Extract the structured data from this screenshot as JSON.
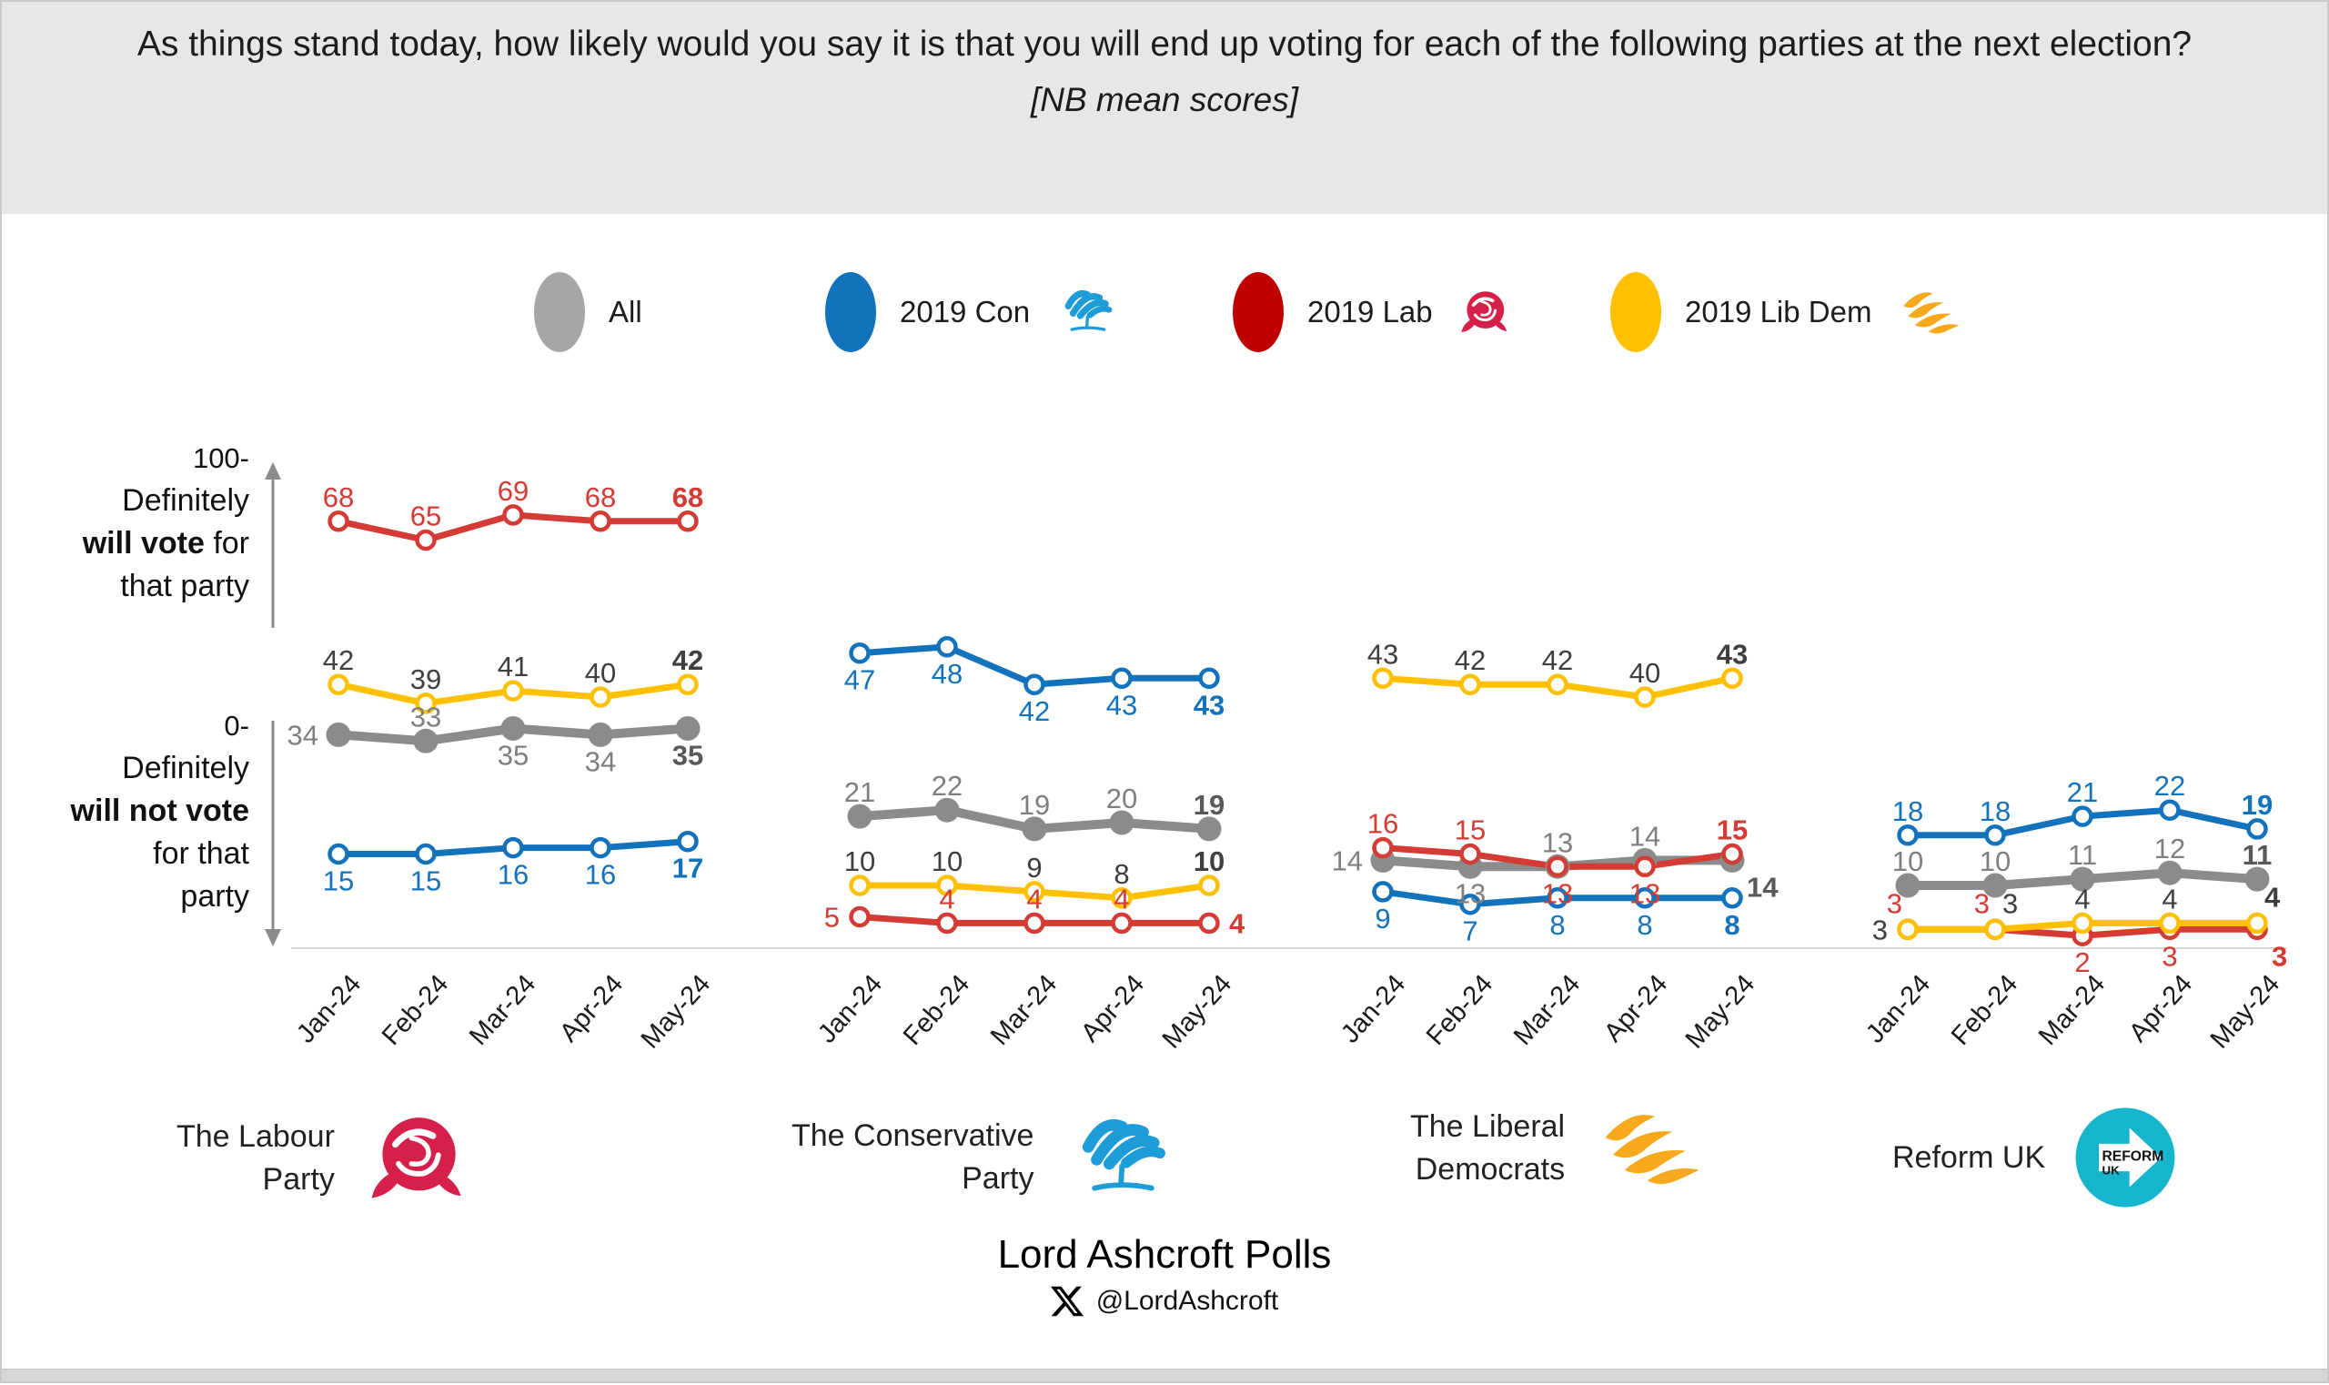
{
  "title": {
    "question": "As things stand today, how likely would you say it is that you will end up voting for each of the following parties at the next election?",
    "note": "[NB mean scores]"
  },
  "legend": {
    "items": [
      {
        "label": "All",
        "color": "#a6a6a6",
        "icon": null
      },
      {
        "label": "2019 Con",
        "color": "#1272bb",
        "icon": "conservative-tree"
      },
      {
        "label": "2019 Lab",
        "color": "#c00000",
        "icon": "labour-rose"
      },
      {
        "label": "2019 Lib Dem",
        "color": "#ffc000",
        "icon": "libdem-bird"
      }
    ]
  },
  "y_axis": {
    "top_tick": "100-",
    "top": {
      "l1": "Definitely",
      "bold": "will vote",
      "after_bold": " for",
      "l3": "that party"
    },
    "bottom_tick": "0-",
    "bottom": {
      "l1": "Definitely",
      "bold": "will not vote",
      "l3": "for that",
      "l4": "party"
    }
  },
  "colors": {
    "all": "#8b8b8b",
    "con": "#1272bb",
    "lab": "#d43b34",
    "libdem": "#ffc000",
    "label_gray": "#7f7f7f",
    "label_gray_last": "#595959",
    "label_dark": "#3f3f3f",
    "baseline": "#d9d9d9",
    "arrow": "#8c8c8c",
    "tick_text": "#1a1a1a"
  },
  "chart_data": {
    "type": "line",
    "x": [
      "Jan-24",
      "Feb-24",
      "Mar-24",
      "Apr-24",
      "May-24"
    ],
    "ylim": [
      0,
      100
    ],
    "grid": false,
    "legend_position": "top",
    "panels": [
      {
        "party": "The Labour Party",
        "name_lines": [
          "The Labour",
          "Party"
        ],
        "logo": "labour-rose",
        "series": [
          {
            "name": "All",
            "values": [
              34,
              33,
              35,
              34,
              35
            ],
            "label_pos": [
              "l",
              "a",
              "b",
              "b",
              "b"
            ]
          },
          {
            "name": "2019 Lab",
            "values": [
              68,
              65,
              69,
              68,
              68
            ],
            "label_pos": [
              "a",
              "a",
              "a",
              "a",
              "a"
            ]
          },
          {
            "name": "2019 Lib Dem",
            "values": [
              42,
              39,
              41,
              40,
              42
            ],
            "label_pos": [
              "a",
              "a",
              "a",
              "a",
              "a"
            ]
          },
          {
            "name": "2019 Con",
            "values": [
              15,
              15,
              16,
              16,
              17
            ],
            "label_pos": [
              "b",
              "b",
              "b",
              "b",
              "b"
            ]
          }
        ]
      },
      {
        "party": "The Conservative Party",
        "name_lines": [
          "The Conservative",
          "Party"
        ],
        "logo": "conservative-tree",
        "series": [
          {
            "name": "All",
            "values": [
              21,
              22,
              19,
              20,
              19
            ],
            "label_pos": [
              "a",
              "a",
              "a",
              "a",
              "a"
            ]
          },
          {
            "name": "2019 Lab",
            "values": [
              5,
              4,
              4,
              4,
              4
            ],
            "label_pos": [
              "l",
              "a",
              "a",
              "a",
              "r"
            ]
          },
          {
            "name": "2019 Lib Dem",
            "values": [
              10,
              10,
              9,
              8,
              10
            ],
            "label_pos": [
              "a",
              "a",
              "a",
              "a",
              "a"
            ]
          },
          {
            "name": "2019 Con",
            "values": [
              47,
              48,
              42,
              43,
              43
            ],
            "label_pos": [
              "b",
              "b",
              "b",
              "b",
              "b"
            ]
          }
        ]
      },
      {
        "party": "The Liberal Democrats",
        "name_lines": [
          "The Liberal",
          "Democrats"
        ],
        "logo": "libdem-bird",
        "series": [
          {
            "name": "All",
            "values": [
              14,
              13,
              13,
              14,
              14
            ],
            "label_pos": [
              "l",
              "b",
              "a",
              "a",
              "br"
            ]
          },
          {
            "name": "2019 Lab",
            "values": [
              16,
              15,
              13,
              13,
              15
            ],
            "label_pos": [
              "a",
              "a",
              "b",
              "b",
              "a"
            ]
          },
          {
            "name": "2019 Lib Dem",
            "values": [
              43,
              42,
              42,
              40,
              43
            ],
            "label_pos": [
              "a",
              "a",
              "a",
              "a",
              "a"
            ]
          },
          {
            "name": "2019 Con",
            "values": [
              9,
              7,
              8,
              8,
              8
            ],
            "label_pos": [
              "b",
              "b",
              "b",
              "b",
              "b"
            ]
          }
        ]
      },
      {
        "party": "Reform UK",
        "name_lines": [
          "Reform UK"
        ],
        "logo": "reform-uk",
        "series": [
          {
            "name": "All",
            "values": [
              10,
              10,
              11,
              12,
              11
            ],
            "label_pos": [
              "a",
              "a",
              "a",
              "a",
              "a"
            ]
          },
          {
            "name": "2019 Lab",
            "values": [
              3,
              3,
              2,
              3,
              3
            ],
            "label_pos": [
              "al",
              "al",
              "b",
              "b",
              "br"
            ]
          },
          {
            "name": "2019 Lib Dem",
            "values": [
              3,
              3,
              4,
              4,
              4
            ],
            "label_pos": [
              "l",
              "ar",
              "a",
              "a",
              "ar"
            ]
          },
          {
            "name": "2019 Con",
            "values": [
              18,
              18,
              21,
              22,
              19
            ],
            "label_pos": [
              "a",
              "a",
              "a",
              "a",
              "a"
            ]
          }
        ]
      }
    ]
  },
  "reform_logo": {
    "line1": "REFORM",
    "line2": "UK"
  },
  "footer": {
    "brand": "Lord Ashcroft Polls",
    "handle": "@LordAshcroft"
  }
}
